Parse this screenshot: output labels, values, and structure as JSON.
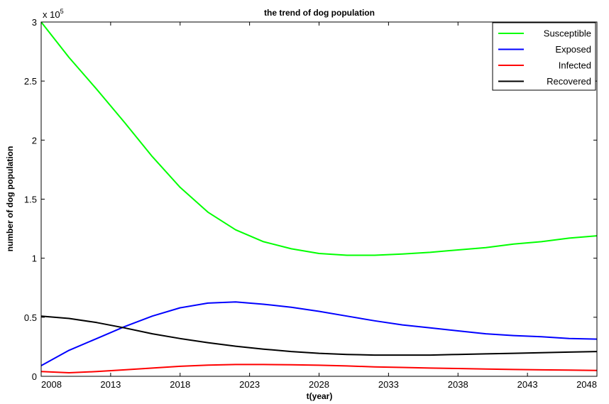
{
  "chart_data": {
    "type": "line",
    "title": "the trend of dog population",
    "xlabel": "t(year)",
    "ylabel": "number of dog population",
    "y_exponent_label": "x 10",
    "y_exponent_power": "5",
    "xlim": [
      2008,
      2048
    ],
    "ylim": [
      0,
      3
    ],
    "xticks": [
      2008,
      2013,
      2018,
      2023,
      2028,
      2033,
      2038,
      2043,
      2048
    ],
    "yticks": [
      0,
      0.5,
      1,
      1.5,
      2,
      2.5,
      3
    ],
    "ytick_labels": [
      "0",
      "0.5",
      "1",
      "1.5",
      "2",
      "2.5",
      "3"
    ],
    "legend_position": "top-right",
    "x": [
      2008,
      2010,
      2012,
      2014,
      2016,
      2018,
      2020,
      2022,
      2024,
      2026,
      2028,
      2030,
      2032,
      2034,
      2036,
      2038,
      2040,
      2042,
      2044,
      2046,
      2048
    ],
    "series": [
      {
        "name": "Susceptible",
        "color": "#00ff00",
        "values": [
          3.0,
          2.7,
          2.43,
          2.15,
          1.86,
          1.6,
          1.39,
          1.24,
          1.14,
          1.08,
          1.04,
          1.025,
          1.025,
          1.035,
          1.05,
          1.07,
          1.09,
          1.12,
          1.14,
          1.17,
          1.19
        ]
      },
      {
        "name": "Exposed",
        "color": "#0000ff",
        "values": [
          0.09,
          0.22,
          0.32,
          0.42,
          0.51,
          0.58,
          0.62,
          0.63,
          0.61,
          0.585,
          0.55,
          0.51,
          0.47,
          0.435,
          0.41,
          0.385,
          0.36,
          0.345,
          0.335,
          0.32,
          0.315
        ]
      },
      {
        "name": "Infected",
        "color": "#ff0000",
        "values": [
          0.04,
          0.03,
          0.04,
          0.055,
          0.07,
          0.085,
          0.095,
          0.1,
          0.1,
          0.098,
          0.094,
          0.088,
          0.08,
          0.075,
          0.07,
          0.066,
          0.062,
          0.058,
          0.055,
          0.053,
          0.05
        ]
      },
      {
        "name": "Recovered",
        "color": "#000000",
        "values": [
          0.51,
          0.49,
          0.455,
          0.41,
          0.36,
          0.32,
          0.285,
          0.255,
          0.23,
          0.21,
          0.195,
          0.185,
          0.18,
          0.18,
          0.18,
          0.185,
          0.19,
          0.195,
          0.2,
          0.205,
          0.21
        ]
      }
    ]
  }
}
